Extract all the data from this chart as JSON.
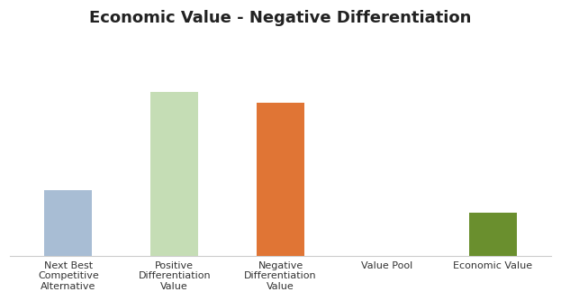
{
  "title": "Economic Value - Negative Differentiation",
  "categories": [
    "Next Best\nCompetitive\nAlternative",
    "Positive\nDifferentiation\nValue",
    "Negative\nDifferentiation\nValue",
    "Value Pool",
    "Economic Value"
  ],
  "values": [
    30,
    75,
    70,
    0,
    20
  ],
  "bar_colors": [
    "#a8bdd4",
    "#c5ddb5",
    "#e07535",
    "#ffffff",
    "#6a8f2e"
  ],
  "background_color": "#ffffff",
  "title_fontsize": 13,
  "title_fontweight": "bold",
  "grid_color": "#d0d0d0",
  "ylim": [
    0,
    100
  ],
  "figsize": [
    6.23,
    3.34
  ],
  "dpi": 100
}
